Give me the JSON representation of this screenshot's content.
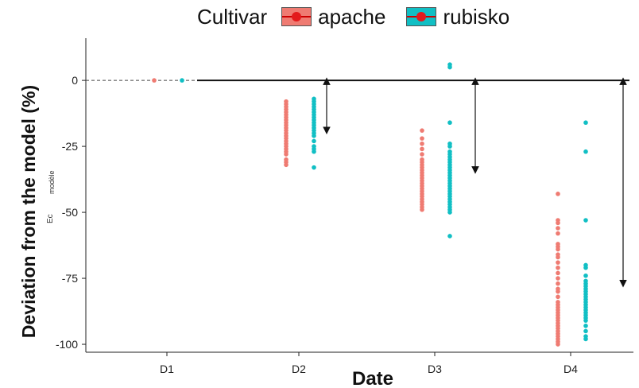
{
  "legend": {
    "title": "Cultivar",
    "items": [
      {
        "label": "apache",
        "color": "#ef7b72"
      },
      {
        "label": "rubisko",
        "color": "#11bfc4"
      }
    ]
  },
  "overlay_text": {
    "a": "Ec",
    "b": "modèle"
  },
  "chart_data": {
    "type": "scatter",
    "xlabel": "Date",
    "ylabel": "Deviation from the model (%)",
    "categories": [
      "D1",
      "D2",
      "D3",
      "D4"
    ],
    "ylim": [
      -103,
      16
    ],
    "yticks": [
      0,
      -25,
      -50,
      -75,
      -100
    ],
    "grid": false,
    "legend_position": "top",
    "reference_line": 0,
    "series": [
      {
        "name": "apache",
        "color": "#ef7b72",
        "points": [
          {
            "x": "D1",
            "y": [
              0
            ]
          },
          {
            "x": "D2",
            "y": [
              -8,
              -9,
              -10,
              -11,
              -12,
              -13,
              -14,
              -15,
              -16,
              -17,
              -18,
              -19,
              -20,
              -21,
              -22,
              -23,
              -24,
              -25,
              -26,
              -27,
              -28,
              -30,
              -31,
              -32
            ]
          },
          {
            "x": "D3",
            "y": [
              -19,
              -22,
              -24,
              -26,
              -28,
              -30,
              -31,
              -32,
              -33,
              -34,
              -35,
              -36,
              -37,
              -38,
              -39,
              -40,
              -41,
              -42,
              -43,
              -44,
              -45,
              -46,
              -47,
              -48,
              -49
            ]
          },
          {
            "x": "D4",
            "y": [
              -43,
              -53,
              -54,
              -56,
              -58,
              -62,
              -63,
              -64,
              -66,
              -67,
              -69,
              -71,
              -73,
              -75,
              -77,
              -79,
              -80,
              -82,
              -84,
              -85,
              -86,
              -87,
              -88,
              -89,
              -90,
              -91,
              -92,
              -93,
              -94,
              -95,
              -96,
              -97,
              -98,
              -99,
              -100
            ]
          }
        ]
      },
      {
        "name": "rubisko",
        "color": "#11bfc4",
        "points": [
          {
            "x": "D1",
            "y": [
              0
            ]
          },
          {
            "x": "D2",
            "y": [
              -7,
              -8,
              -9,
              -10,
              -11,
              -12,
              -13,
              -14,
              -15,
              -16,
              -17,
              -18,
              -19,
              -20,
              -21,
              -23,
              -25,
              -26,
              -27,
              -33
            ]
          },
          {
            "x": "D3",
            "y": [
              6,
              5,
              -16,
              -24,
              -25,
              -27,
              -28,
              -29,
              -30,
              -31,
              -32,
              -33,
              -34,
              -35,
              -36,
              -37,
              -38,
              -39,
              -40,
              -41,
              -42,
              -43,
              -44,
              -45,
              -46,
              -47,
              -48,
              -49,
              -50,
              -59
            ]
          },
          {
            "x": "D4",
            "y": [
              -16,
              -27,
              -53,
              -70,
              -71,
              -74,
              -76,
              -77,
              -78,
              -79,
              -80,
              -81,
              -82,
              -83,
              -84,
              -85,
              -86,
              -87,
              -88,
              -89,
              -90,
              -91,
              -93,
              -95,
              -97,
              -98
            ]
          }
        ]
      }
    ],
    "arrows": [
      {
        "x": "D2",
        "from": 0,
        "to": -19
      },
      {
        "x": "D3",
        "from": 0,
        "to": -34
      },
      {
        "x": "D4",
        "from": 0,
        "to": -77
      }
    ]
  }
}
